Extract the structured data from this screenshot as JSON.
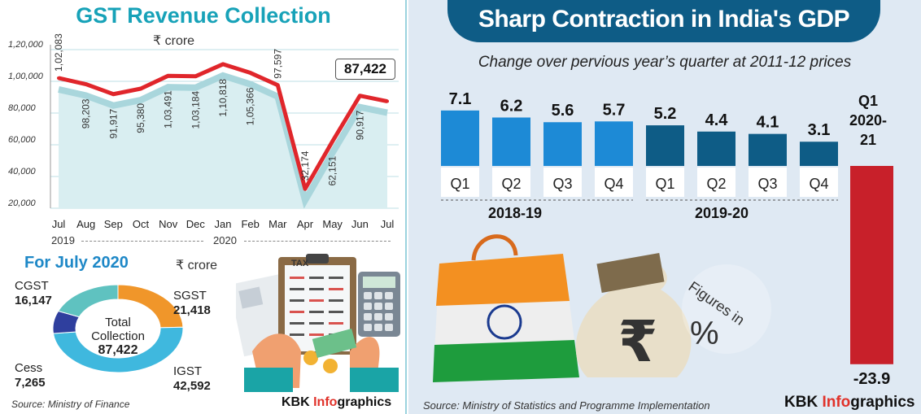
{
  "left": {
    "title": "GST Revenue Collection",
    "unit": "₹ crore",
    "highlight_value": "87,422",
    "year_labels": [
      "2019",
      "2020"
    ],
    "for_title": "For July 2020",
    "for_unit": "₹ crore",
    "donut": {
      "center_label": "Total Collection",
      "center_value": "87,422",
      "segments": [
        {
          "name": "SGST",
          "value": "21,418",
          "color": "#f0962a"
        },
        {
          "name": "IGST",
          "value": "42,592",
          "color": "#3fb8de"
        },
        {
          "name": "Cess",
          "value": "7,265",
          "color": "#2f3f9e"
        },
        {
          "name": "CGST",
          "value": "16,147",
          "color": "#5fc2c0"
        }
      ]
    },
    "tax_sheet_label": "TAX",
    "source": "Source: Ministry of Finance",
    "brand_prefix": "KBK ",
    "brand_highlight": "Info",
    "brand_suffix": "graphics"
  },
  "right": {
    "title": "Sharp Contraction in India's GDP",
    "subtitle": "Change over pervious year’s quarter at 2011-12 prices",
    "source": "Source: Ministry of Statistics and Programme Implementation",
    "brand_prefix": "KBK ",
    "brand_highlight": "Info",
    "brand_suffix": "graphics",
    "figures_label": "Figures in",
    "percent_symbol": "%"
  },
  "chart_data": [
    {
      "type": "line",
      "title": "GST Revenue Collection",
      "unit": "₹ crore",
      "categories": [
        "Jul",
        "Aug",
        "Sep",
        "Oct",
        "Nov",
        "Dec",
        "Jan",
        "Feb",
        "Mar",
        "Apr",
        "May",
        "Jun",
        "Jul"
      ],
      "values": [
        102083,
        98203,
        91917,
        95380,
        103491,
        103184,
        110818,
        105366,
        97597,
        32174,
        62151,
        90917,
        87422
      ],
      "labels": [
        "1,02,083",
        "98,203",
        "91,917",
        "95,380",
        "1,03,491",
        "1,03,184",
        "1,10,818",
        "1,05,366",
        "97,597",
        "32,174",
        "62,151",
        "90,917",
        "87,422"
      ],
      "y_ticks": [
        "1,20,000",
        "1,00,000",
        "80,000",
        "60,000",
        "40,000",
        "20,000"
      ],
      "y_tick_values": [
        120000,
        100000,
        80000,
        60000,
        40000,
        20000
      ],
      "ylim": [
        20000,
        120000
      ],
      "line_color": "#e0262b"
    },
    {
      "type": "bar",
      "title": "Sharp Contraction in India's GDP",
      "subtitle": "Change over pervious year’s quarter at 2011-12 prices",
      "categories": [
        "Q1",
        "Q2",
        "Q3",
        "Q4",
        "Q1",
        "Q2",
        "Q3",
        "Q4",
        "Q1"
      ],
      "groups": [
        "2018-19",
        "2019-20",
        "2020-21"
      ],
      "values": [
        7.1,
        6.2,
        5.6,
        5.7,
        5.2,
        4.4,
        4.1,
        3.1,
        -23.9
      ],
      "value_labels": [
        "7.1",
        "6.2",
        "5.6",
        "5.7",
        "5.2",
        "4.4",
        "4.1",
        "3.1",
        "-23.9"
      ],
      "last_label_top": "Q1",
      "last_label_year": "2020-",
      "last_label_year2": "21",
      "colors": {
        "2018-19": "#1d8ad6",
        "2019-20": "#0e5c86",
        "negative": "#c8202a"
      }
    }
  ]
}
